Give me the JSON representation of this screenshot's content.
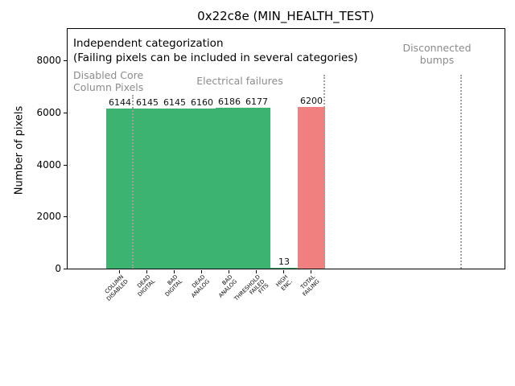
{
  "chart_data": {
    "type": "bar",
    "title": "0x22c8e (MIN_HEALTH_TEST)",
    "ylabel": "Number of pixels",
    "xlabel": "",
    "ylim": [
      0,
      9250
    ],
    "grid": false,
    "legend": "none",
    "yticks": [
      0,
      2000,
      4000,
      6000,
      8000
    ],
    "categories": [
      [
        "COLUMN",
        "DISABLED"
      ],
      [
        "DEAD",
        "DIGITAL"
      ],
      [
        "BAD",
        "DIGITAL"
      ],
      [
        "DEAD",
        "ANALOG"
      ],
      [
        "BAD",
        "ANALOG"
      ],
      [
        "THRESHOLD",
        "FAILED",
        "FITS"
      ],
      [
        "HIGH",
        "ENC."
      ],
      [
        "TOTAL",
        "FAILING"
      ]
    ],
    "values": [
      6144,
      6145,
      6145,
      6160,
      6186,
      6177,
      13,
      6200
    ],
    "bar_value_labels": [
      "6144",
      "6145",
      "6145",
      "6160",
      "6186",
      "6177",
      "13",
      "6200"
    ],
    "bar_color_keys": [
      "green",
      "green",
      "green",
      "green",
      "green",
      "green",
      "green",
      "red"
    ],
    "colors": {
      "green": "#3cb371",
      "red": "#f08080",
      "annotation_gray": "#8b8b8b",
      "separator_gray": "#a0a0a0"
    },
    "separators_after_slot": [
      1,
      8,
      13
    ],
    "annotations": {
      "independent_line1": "Independent categorization",
      "independent_line2": "(Failing pixels can be included in several categories)",
      "group_disabled_line1": "Disabled Core",
      "group_disabled_line2": "Column Pixels",
      "group_electrical": "Electrical failures",
      "group_disconnected_line1": "Disconnected",
      "group_disconnected_line2": "bumps"
    }
  }
}
